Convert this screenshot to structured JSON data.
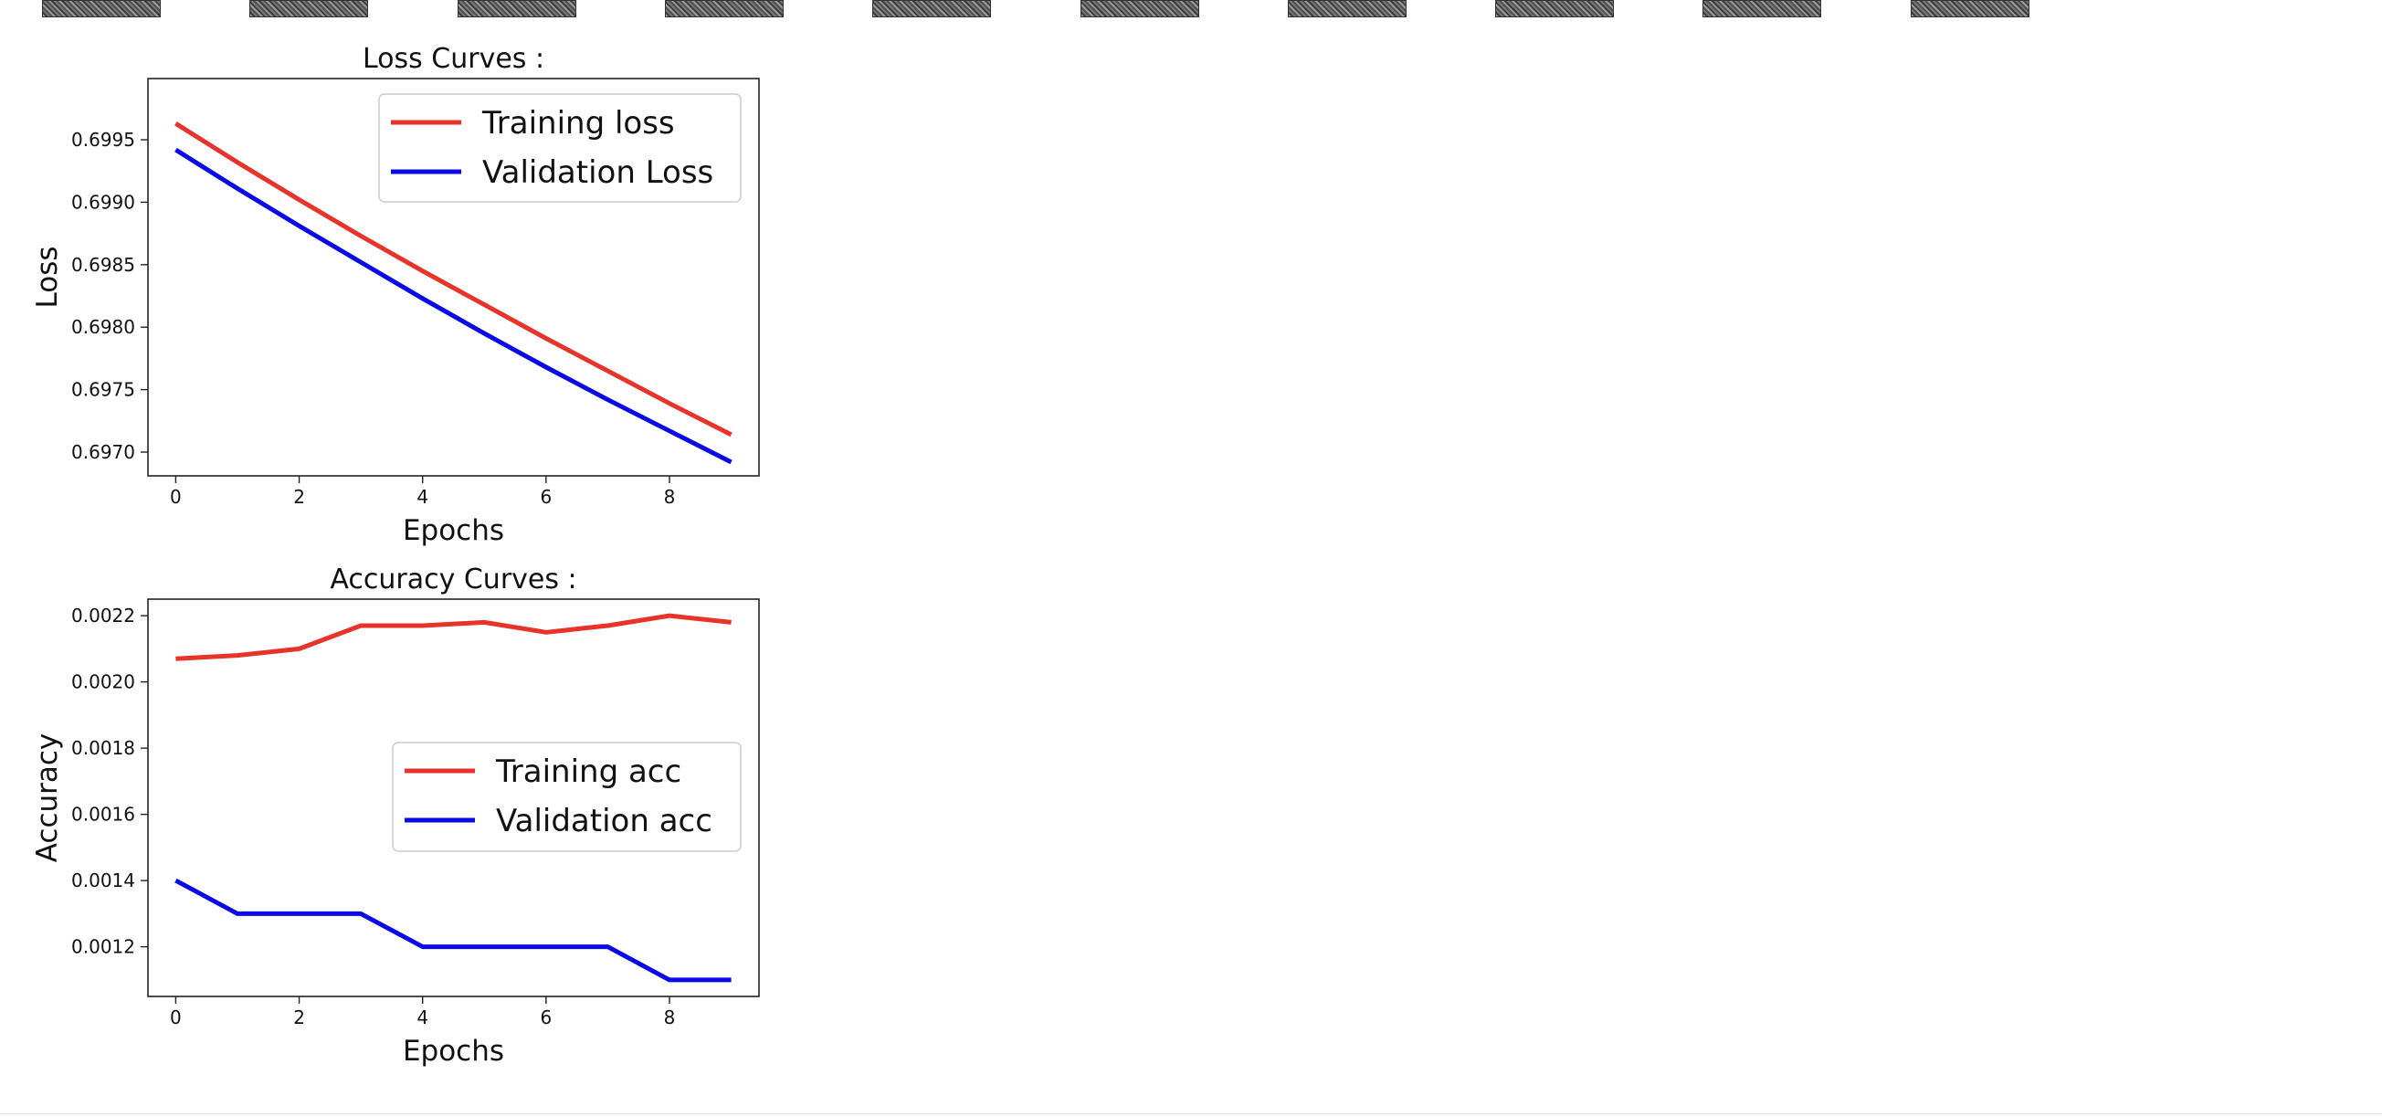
{
  "colors": {
    "training": "#e8332a",
    "validation": "#0a0ae6"
  },
  "thumbnail_strip": {
    "count": 10
  },
  "chart_data": [
    {
      "type": "line",
      "title": "Loss Curves :",
      "xlabel": "Epochs",
      "ylabel": "Loss",
      "x": [
        0,
        1,
        2,
        3,
        4,
        5,
        6,
        7,
        8,
        9
      ],
      "xlim": [
        -0.45,
        9.45
      ],
      "ylim": [
        0.69681,
        0.69999
      ],
      "xticks": [
        0,
        2,
        4,
        6,
        8
      ],
      "xtick_labels": [
        "0",
        "2",
        "4",
        "6",
        "8"
      ],
      "yticks": [
        0.697,
        0.6975,
        0.698,
        0.6985,
        0.699,
        0.6995
      ],
      "ytick_labels": [
        "0.6970",
        "0.6975",
        "0.6980",
        "0.6985",
        "0.6990",
        "0.6995"
      ],
      "legend_position": "top-right",
      "grid": false,
      "series": [
        {
          "name": "Training loss",
          "color": "#e8332a",
          "values": [
            0.69963,
            0.69932,
            0.69902,
            0.69873,
            0.69845,
            0.69818,
            0.69791,
            0.69765,
            0.69739,
            0.69714
          ]
        },
        {
          "name": "Validation Loss",
          "color": "#0a0ae6",
          "values": [
            0.69942,
            0.69911,
            0.69881,
            0.69852,
            0.69823,
            0.69795,
            0.69768,
            0.69742,
            0.69717,
            0.69692
          ]
        }
      ]
    },
    {
      "type": "line",
      "title": "Accuracy Curves :",
      "xlabel": "Epochs",
      "ylabel": "Accuracy",
      "x": [
        0,
        1,
        2,
        3,
        4,
        5,
        6,
        7,
        8,
        9
      ],
      "xlim": [
        -0.45,
        9.45
      ],
      "ylim": [
        0.00105,
        0.00225
      ],
      "xticks": [
        0,
        2,
        4,
        6,
        8
      ],
      "xtick_labels": [
        "0",
        "2",
        "4",
        "6",
        "8"
      ],
      "yticks": [
        0.0012,
        0.0014,
        0.0016,
        0.0018,
        0.002,
        0.0022
      ],
      "ytick_labels": [
        "0.0012",
        "0.0014",
        "0.0016",
        "0.0018",
        "0.0020",
        "0.0022"
      ],
      "legend_position": "center-right",
      "grid": false,
      "series": [
        {
          "name": "Training acc",
          "color": "#e8332a",
          "values": [
            0.00207,
            0.00208,
            0.0021,
            0.00217,
            0.00217,
            0.00218,
            0.00215,
            0.00217,
            0.0022,
            0.00218
          ]
        },
        {
          "name": "Validation acc",
          "color": "#0a0ae6",
          "values": [
            0.0014,
            0.0013,
            0.0013,
            0.0013,
            0.0012,
            0.0012,
            0.0012,
            0.0012,
            0.0011,
            0.0011
          ]
        }
      ]
    }
  ]
}
